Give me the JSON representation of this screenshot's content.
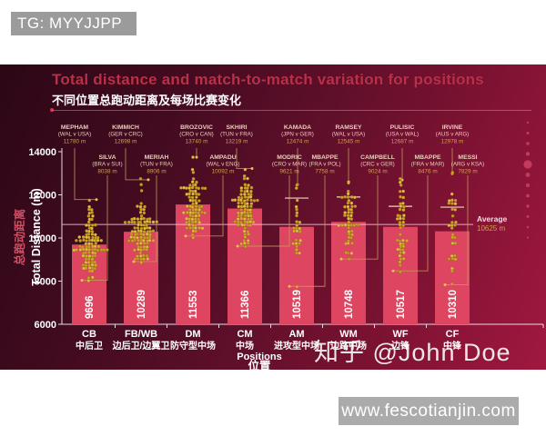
{
  "overlays": {
    "tg_badge": "TG: MYYJJPP",
    "zhihu_watermark": "知乎 @John Doe",
    "site_watermark": "www.fescotianjin.com"
  },
  "header": {
    "title": "Total distance and match-to-match variation for positions",
    "subtitle": "不同位置总跑动距离及每场比赛变化"
  },
  "chart_data": {
    "type": "bar",
    "title": "Total distance and match-to-match variation for positions",
    "subtitle_zh": "不同位置总跑动距离及每场比赛变化",
    "xlabel": "Positions",
    "xlabel_zh": "位置",
    "ylabel": "Total Distance (m)",
    "ylabel_zh": "总跑动距离",
    "ylim": [
      6000,
      14000
    ],
    "yticks": [
      6000,
      8000,
      10000,
      12000,
      14000
    ],
    "grid": false,
    "average": {
      "label": "Average",
      "value": 10625,
      "value_label": "10625 m"
    },
    "categories": [
      "CB",
      "FB/WB",
      "DM",
      "CM",
      "AM",
      "WM",
      "WF",
      "CF"
    ],
    "categories_zh": [
      "中后卫",
      "边后卫/边翼卫",
      "防守型中场",
      "中场",
      "进攻型中场",
      "边路中场",
      "边锋",
      "中锋"
    ],
    "bar_values": [
      9696,
      10289,
      11553,
      11366,
      10519,
      10748,
      10517,
      10310
    ],
    "max_players": [
      {
        "name": "MEPHAM",
        "match": "(WAL v USA)",
        "value": 11780,
        "label": "11780 m"
      },
      {
        "name": "KIMMICH",
        "match": "(GER v CRC)",
        "value": 12698,
        "label": "12698 m"
      },
      {
        "name": "BROZOVIC",
        "match": "(CRO v CAN)",
        "value": 13740,
        "label": "13740 m"
      },
      {
        "name": "SKHIRI",
        "match": "(TUN v FRA)",
        "value": 13219,
        "label": "13219 m"
      },
      {
        "name": "KAMADA",
        "match": "(JPN v GER)",
        "value": 12474,
        "label": "12474 m"
      },
      {
        "name": "RAMSEY",
        "match": "(WAL v USA)",
        "value": 12545,
        "label": "12545 m"
      },
      {
        "name": "PULISIC",
        "match": "(USA v WAL)",
        "value": 12687,
        "label": "12687 m"
      },
      {
        "name": "IRVINE",
        "match": "(AUS v ARG)",
        "value": 12978,
        "label": "12978 m"
      }
    ],
    "min_players": [
      {
        "name": "SILVA",
        "match": "(BRA v SUI)",
        "value": 8038,
        "label": "8038 m"
      },
      {
        "name": "MERIAH",
        "match": "(TUN v FRA)",
        "value": 8906,
        "label": "8906 m"
      },
      {
        "name": "AMPADU",
        "match": "(WAL v ENG)",
        "value": 10092,
        "label": "10092 m"
      },
      {
        "name": "MODRIC",
        "match": "(CRO v MAR)",
        "value": 9621,
        "label": "9621 m"
      },
      {
        "name": "MBAPPE",
        "match": "(FRA v POL)",
        "value": 7758,
        "label": "7758 m"
      },
      {
        "name": "CAMPBELL",
        "match": "(CRC v GER)",
        "value": 9024,
        "label": "9024 m"
      },
      {
        "name": "MBAPPE",
        "match": "(FRA v MAR)",
        "value": 8476,
        "label": "8476 m"
      },
      {
        "name": "MESSI",
        "match": "(ARG v KSA)",
        "value": 7829,
        "label": "7829 m"
      }
    ],
    "swarm": [
      {
        "count": 95,
        "sd": 750,
        "spread": 22,
        "cap": null
      },
      {
        "count": 95,
        "sd": 780,
        "spread": 20,
        "cap": null
      },
      {
        "count": 80,
        "sd": 800,
        "spread": 17,
        "cap": null
      },
      {
        "count": 85,
        "sd": 760,
        "spread": 17,
        "cap": null
      },
      {
        "count": 26,
        "sd": 950,
        "spread": 7,
        "cap": 11850
      },
      {
        "count": 48,
        "sd": 780,
        "spread": 11,
        "cap": 11900
      },
      {
        "count": 44,
        "sd": 880,
        "spread": 10,
        "cap": 11470
      },
      {
        "count": 30,
        "sd": 1050,
        "spread": 7,
        "cap": 11430
      }
    ]
  },
  "colors": {
    "panel_dark": "#2c0716",
    "panel_bright": "#a1183f",
    "title": "#b93048",
    "bar": "#dd4560",
    "dot": "#d3a42c",
    "connector": "#c89a5c",
    "axis": "#e8dbe0",
    "player_name": "#eccfbd",
    "meters": "#d3a050",
    "average_line": "#f2ccd6",
    "ylabel_zh": "#cf5065",
    "accent_dot": "#cf4163",
    "badge_bg": "#9b9b9b",
    "watermark_bg": "#ababab"
  }
}
